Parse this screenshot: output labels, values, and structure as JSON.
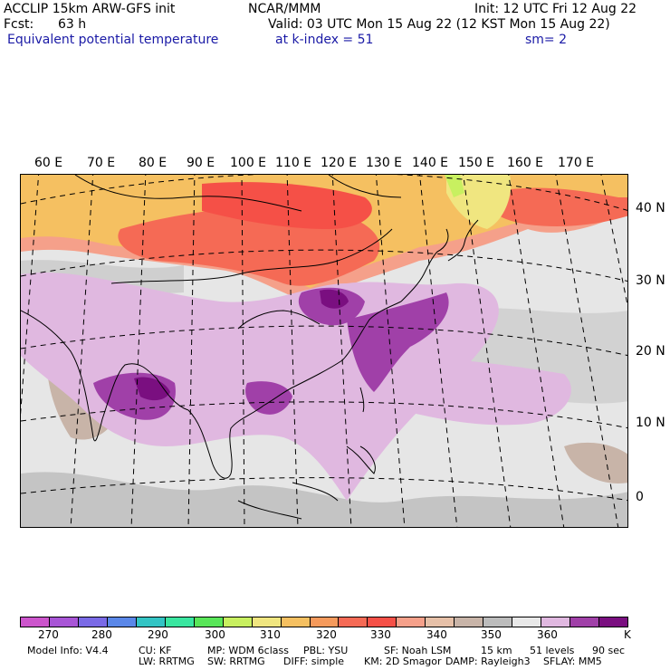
{
  "header": {
    "model": "ACCLIP 15km ARW-GFS init",
    "org": "NCAR/MMM",
    "init": "Init: 12 UTC Fri 12 Aug 22",
    "fcst_label": "Fcst:",
    "fcst_value": "63 h",
    "valid": "Valid: 03 UTC Mon 15 Aug 22 (12 KST Mon 15 Aug 22)",
    "field": "Equivalent potential temperature",
    "level": "at k-index =  51",
    "smooth": "sm= 2"
  },
  "map": {
    "lon_labels": [
      "60 E",
      "70 E",
      "80 E",
      "90 E",
      "100 E",
      "110 E",
      "120 E",
      "130 E",
      "140 E",
      "150 E",
      "160 E",
      "170 E"
    ],
    "lat_labels": [
      "40 N",
      "30 N",
      "20 N",
      "10 N",
      "0"
    ]
  },
  "colorbar": {
    "colors": [
      "#cc55cc",
      "#a855d6",
      "#7a6ae6",
      "#5a87e8",
      "#33c4c4",
      "#3ae6a0",
      "#59e659",
      "#c8f060",
      "#f0e680",
      "#f5c061",
      "#f59a5c",
      "#f56a55",
      "#f55047",
      "#f5a08a",
      "#e6c0a8",
      "#c8b4a8",
      "#bcbcbc",
      "#e8e8e8",
      "#e0b8e0",
      "#a040a8",
      "#7a0f80"
    ],
    "ticks": [
      "270",
      "280",
      "290",
      "300",
      "310",
      "320",
      "330",
      "340",
      "350",
      "360",
      "K"
    ],
    "units": "K"
  },
  "footer": {
    "line1": [
      "Model Info: V4.4",
      "CU: KF",
      "MP: WDM 6class",
      "PBL: YSU",
      "SF: Noah LSM",
      "15 km",
      "51 levels",
      "90 sec"
    ],
    "line2": [
      "LW: RRTMG",
      "SW: RRTMG",
      "DIFF: simple",
      "KM: 2D Smagor",
      "DAMP: Rayleigh3",
      "SFLAY: MM5"
    ]
  }
}
